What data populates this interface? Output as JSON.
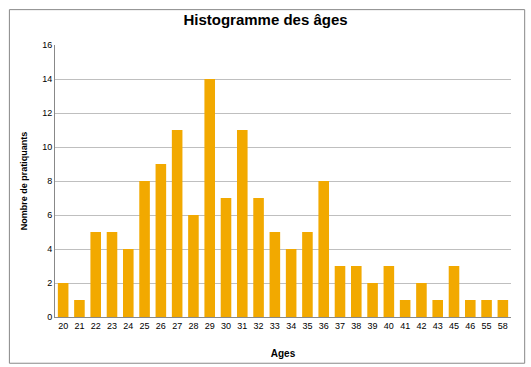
{
  "chart_data": {
    "type": "bar",
    "title": "Histogramme des âges",
    "x_label": "Ages",
    "y_label": "Nombre de pratiquants",
    "categories": [
      "20",
      "21",
      "22",
      "23",
      "24",
      "25",
      "26",
      "27",
      "28",
      "29",
      "30",
      "31",
      "32",
      "33",
      "34",
      "35",
      "36",
      "37",
      "38",
      "39",
      "40",
      "41",
      "42",
      "43",
      "45",
      "46",
      "55",
      "58"
    ],
    "values": [
      2,
      1,
      5,
      5,
      4,
      8,
      9,
      11,
      6,
      14,
      7,
      11,
      7,
      5,
      4,
      5,
      8,
      3,
      3,
      2,
      3,
      1,
      2,
      1,
      3,
      1,
      1,
      1
    ],
    "color": "#f2a900",
    "ylim": [
      0,
      16
    ],
    "yticks": [
      0,
      2,
      4,
      6,
      8,
      10,
      12,
      14,
      16
    ],
    "grid": true
  }
}
